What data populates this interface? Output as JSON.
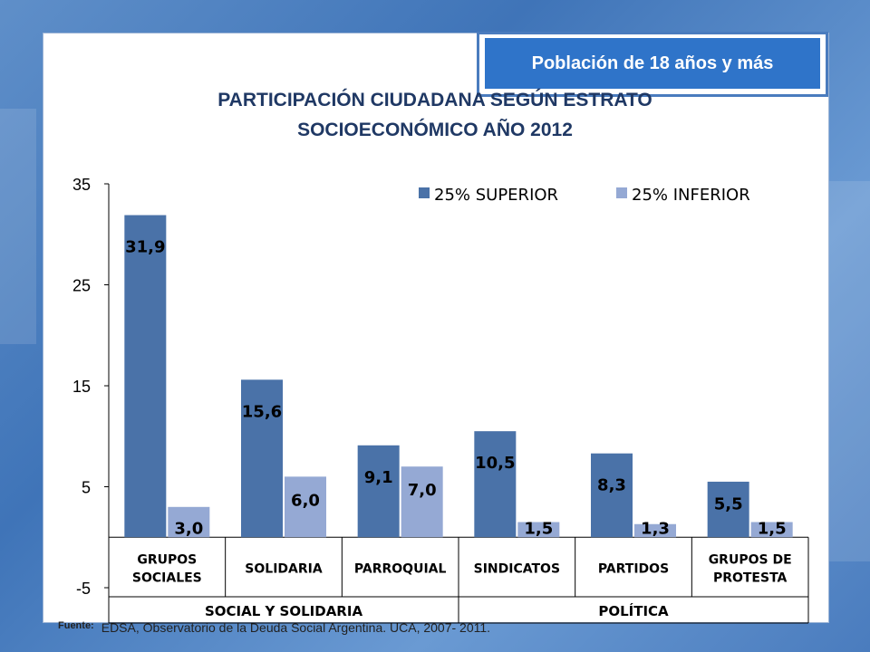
{
  "badge": {
    "text": "Población de 18 años y más"
  },
  "title_line1": "PARTICIPACIÓN CIUDADANA SEGÚN ESTRATO",
  "title_line2": "SOCIOECONÓMICO AÑO 2012",
  "source": {
    "label": "Fuente:",
    "text": "EDSA, Observatorio de la Deuda Social Argentina. UCA, 2007- 2011."
  },
  "colors": {
    "superior": "#4a72a8",
    "inferior": "#95a9d4"
  },
  "chart_data": {
    "type": "bar",
    "categories": [
      [
        "GRUPOS",
        "SOCIALES"
      ],
      [
        "SOLIDARIA"
      ],
      [
        "PARROQUIAL"
      ],
      [
        "SINDICATOS"
      ],
      [
        "PARTIDOS"
      ],
      [
        "GRUPOS DE",
        "PROTESTA"
      ]
    ],
    "category_groups": [
      {
        "label": "SOCIAL Y SOLIDARIA",
        "span": [
          0,
          2
        ]
      },
      {
        "label": "POLÍTICA",
        "span": [
          3,
          5
        ]
      }
    ],
    "series": [
      {
        "name": "25% SUPERIOR",
        "values": [
          31.9,
          15.6,
          9.1,
          10.5,
          8.3,
          5.5
        ],
        "labels": [
          "31,9",
          "15,6",
          "9,1",
          "10,5",
          "8,3",
          "5,5"
        ]
      },
      {
        "name": "25% INFERIOR",
        "values": [
          3.0,
          6.0,
          7.0,
          1.5,
          1.3,
          1.5
        ],
        "labels": [
          "3,0",
          "6,0",
          "7,0",
          "1,5",
          "1,3",
          "1,5"
        ]
      }
    ],
    "yticks": [
      "35",
      "25",
      "15",
      "5",
      "-5"
    ],
    "ylim": [
      -5,
      35
    ],
    "legend": "top-right",
    "grid": false
  }
}
